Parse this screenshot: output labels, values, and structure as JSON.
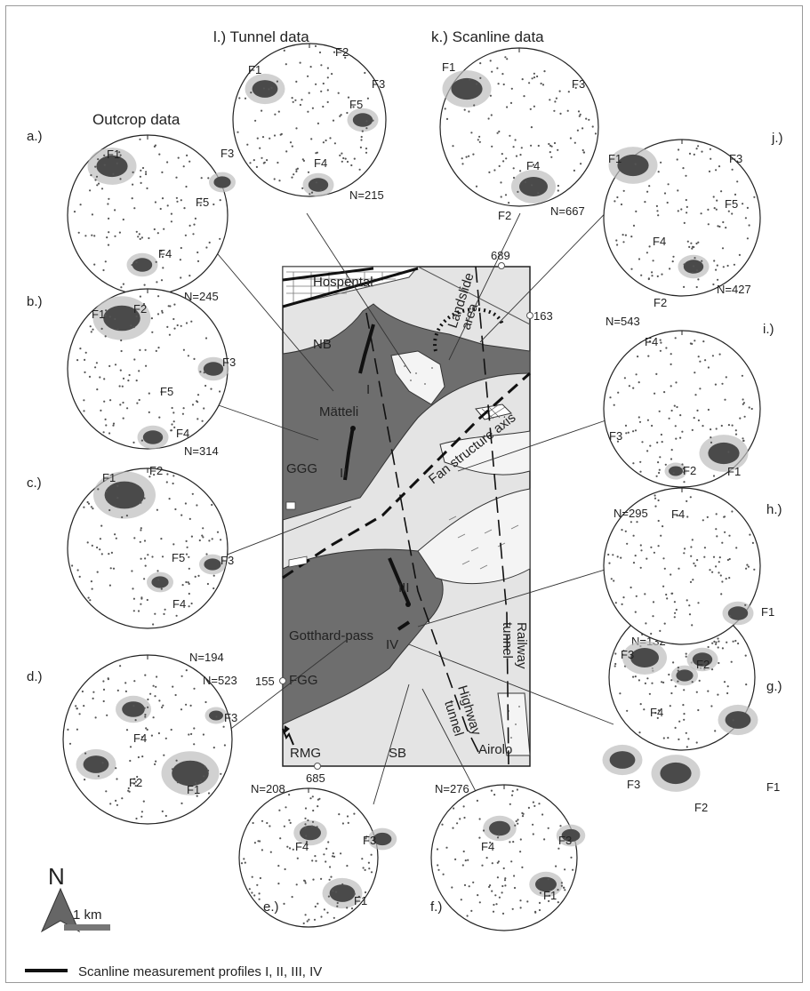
{
  "headers": {
    "tunnel": "l.) Tunnel data",
    "scanline": "k.) Scanline data",
    "outcrop": "Outcrop data"
  },
  "stereonets": [
    {
      "id": "a",
      "label": "a.)",
      "n": "N=245",
      "families": [
        "F1",
        "F3",
        "F5",
        "F4"
      ]
    },
    {
      "id": "b",
      "label": "b.)",
      "n": "N=314",
      "families": [
        "F1",
        "F2",
        "F3",
        "F5",
        "F4"
      ]
    },
    {
      "id": "c",
      "label": "c.)",
      "n": "N=194",
      "families": [
        "F1",
        "F2",
        "F3",
        "F5",
        "F4"
      ]
    },
    {
      "id": "d",
      "label": "d.)",
      "n": "N=523",
      "families": [
        "F3",
        "F4",
        "F1",
        "F2"
      ]
    },
    {
      "id": "e",
      "label": "e.)",
      "n": "N=208",
      "families": [
        "F4",
        "F3",
        "F1"
      ]
    },
    {
      "id": "f",
      "label": "f.)",
      "n": "N=276",
      "families": [
        "F4",
        "F3",
        "F1"
      ]
    },
    {
      "id": "g",
      "label": "g.)",
      "n": "N=132",
      "families": [
        "F4",
        "F3",
        "F1",
        "F2"
      ]
    },
    {
      "id": "h",
      "label": "h.)",
      "n": "N=295",
      "families": [
        "F4",
        "F1",
        "F3",
        "F2"
      ]
    },
    {
      "id": "i",
      "label": "i.)",
      "n": "N=543",
      "families": [
        "F4",
        "F3",
        "F1",
        "F2"
      ]
    },
    {
      "id": "j",
      "label": "j.)",
      "n": "N=427",
      "families": [
        "F1",
        "F3",
        "F5",
        "F4",
        "F2"
      ]
    },
    {
      "id": "k",
      "label": "",
      "n": "N=667",
      "families": [
        "F1",
        "F3",
        "F4",
        "F2"
      ]
    },
    {
      "id": "l",
      "label": "",
      "n": "N=215",
      "families": [
        "F1",
        "F2",
        "F3",
        "F5",
        "F4"
      ]
    }
  ],
  "map": {
    "hospental": "Hospental",
    "nb": "NB",
    "landslide_line1": "Landslide",
    "landslide_line2": "area",
    "matteli": "Mätteli",
    "ggg": "GGG",
    "fan_axis": "Fan structure axis",
    "gotthard_pass": "Gotthard-pass",
    "fgg": "FGG",
    "rmg": "RMG",
    "sb": "SB",
    "airolo": "Airolo",
    "railway_1": "Railway",
    "railway_2": "tunnel",
    "highway_1": "Highway",
    "highway_2": "tunnel",
    "profile_I": "I",
    "profile_II": "II",
    "profile_III": "III",
    "profile_IV": "IV",
    "peak_689": "689",
    "peak_163": "163",
    "peak_155": "155",
    "peak_685": "685"
  },
  "north": "N",
  "scale": "1 km",
  "legend": "Scanline measurement profiles I, II, III, IV",
  "colors": {
    "unit_dark": "#6e6e6e",
    "unit_light": "#e4e4e4",
    "cluster": "#4a4a4a",
    "halo": "#bdbdbd"
  }
}
